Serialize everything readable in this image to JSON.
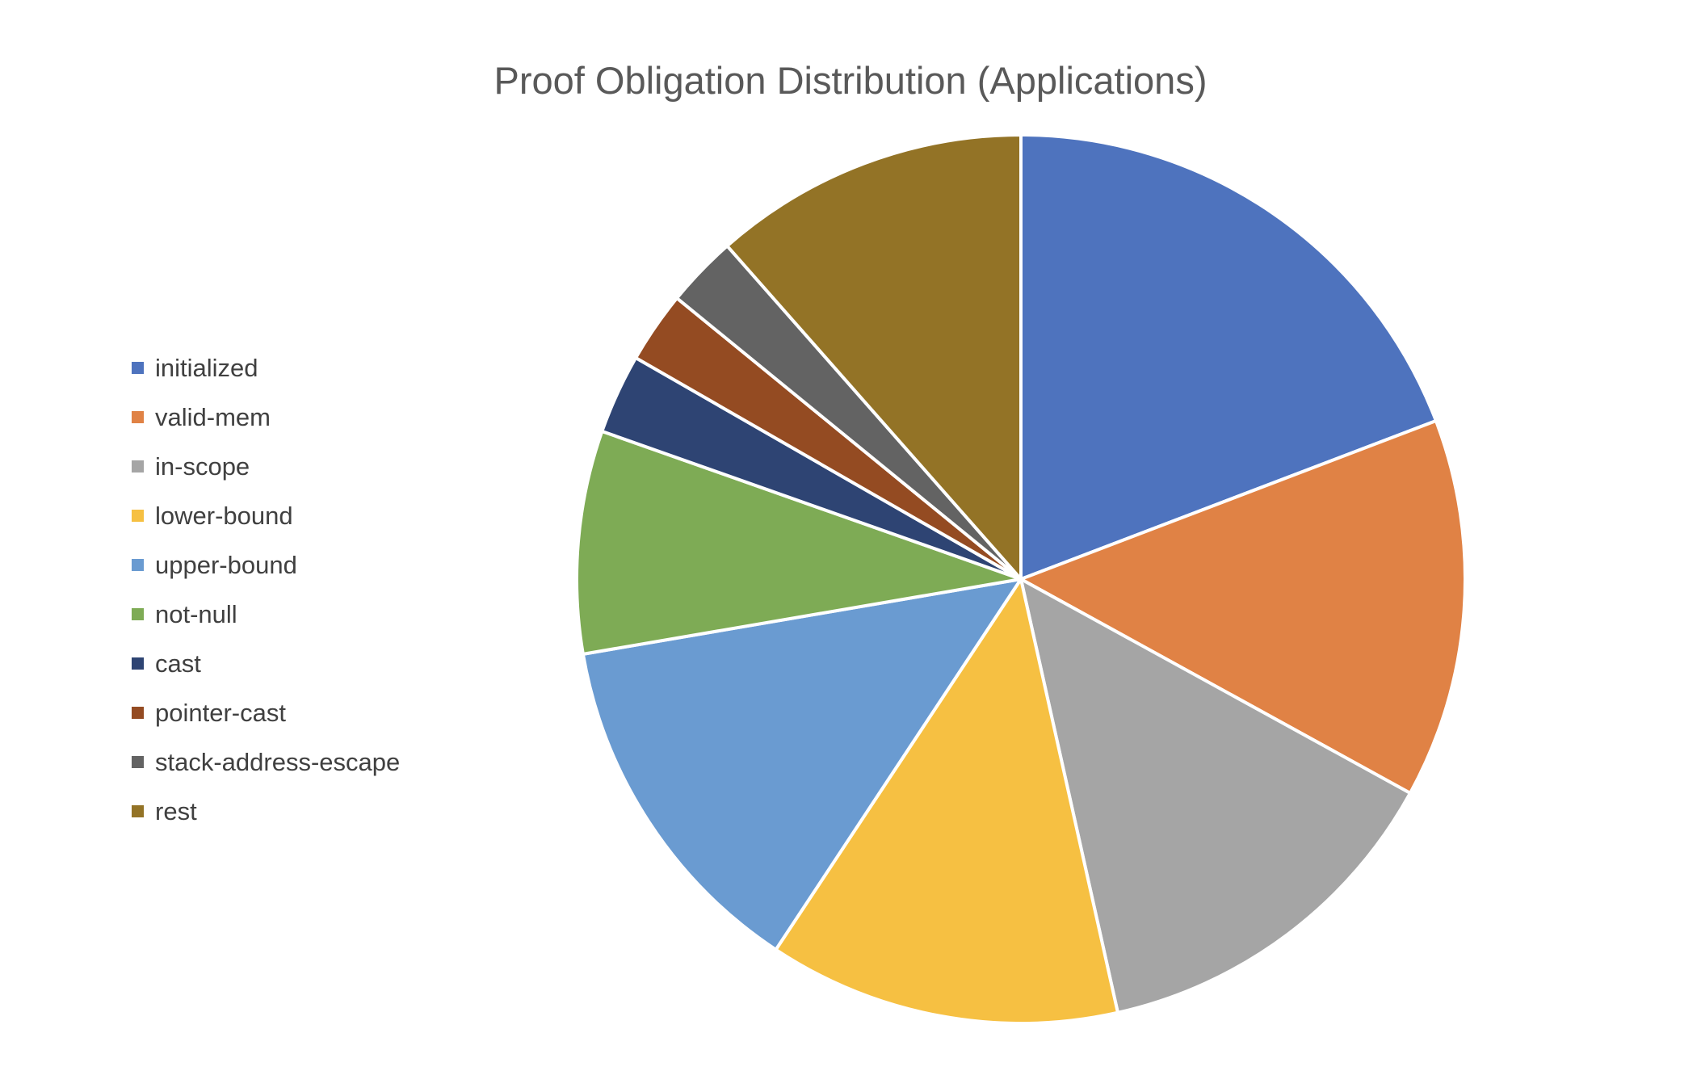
{
  "chart_data": {
    "type": "pie",
    "title": "Proof Obligation Distribution (Applications)",
    "legend_position": "left",
    "start_angle_deg": 0,
    "direction": "clockwise",
    "slices": [
      {
        "label": "initialized",
        "value": 19.2,
        "color": "#4E73BE"
      },
      {
        "label": "valid-mem",
        "value": 13.8,
        "color": "#E08245"
      },
      {
        "label": "in-scope",
        "value": 13.5,
        "color": "#A5A5A5"
      },
      {
        "label": "lower-bound",
        "value": 12.8,
        "color": "#F6C042"
      },
      {
        "label": "upper-bound",
        "value": 13.0,
        "color": "#6A9BD1"
      },
      {
        "label": "not-null",
        "value": 8.1,
        "color": "#7EAB55"
      },
      {
        "label": "cast",
        "value": 2.9,
        "color": "#2E4473"
      },
      {
        "label": "pointer-cast",
        "value": 2.6,
        "color": "#944B22"
      },
      {
        "label": "stack-address-escape",
        "value": 2.6,
        "color": "#636363"
      },
      {
        "label": "rest",
        "value": 11.5,
        "color": "#937326"
      }
    ]
  }
}
